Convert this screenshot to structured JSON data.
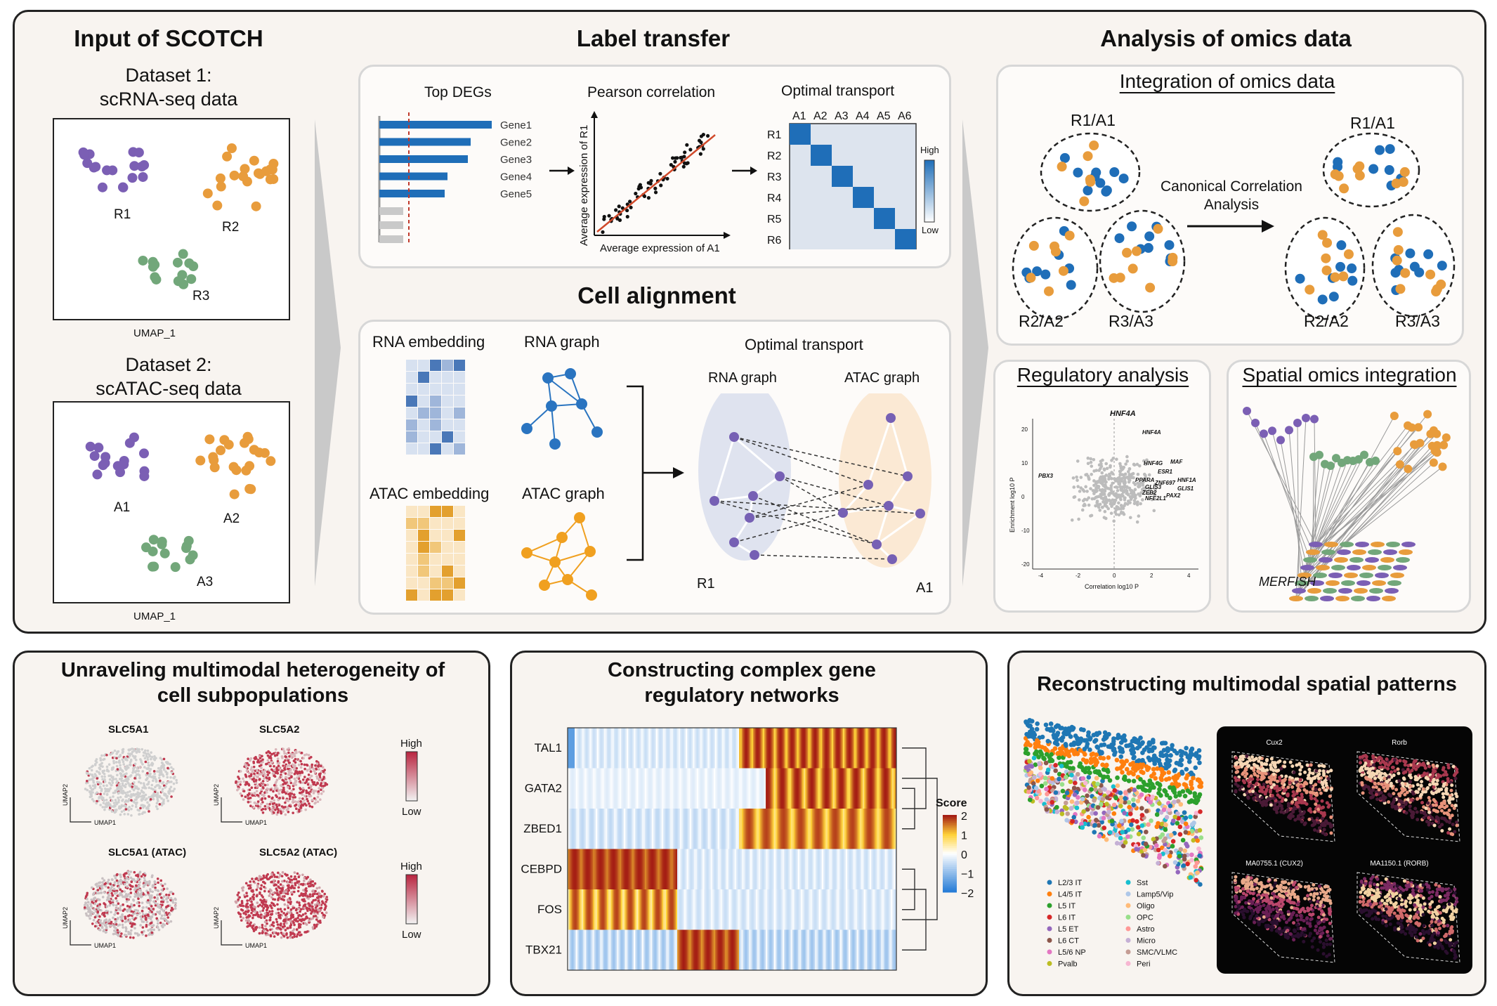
{
  "top": {
    "input": {
      "title": "Input of SCOTCH",
      "dataset1_title": "Dataset 1:",
      "dataset1_sub": "scRNA-seq data",
      "dataset2_title": "Dataset 2:",
      "dataset2_sub": "scATAC-seq data",
      "xlabel": "UMAP_1",
      "ylabel": "UMAP_2",
      "rna_clusters": [
        "R1",
        "R2",
        "R3"
      ],
      "atac_clusters": [
        "A1",
        "A2",
        "A3"
      ]
    },
    "label_transfer": {
      "title": "Label transfer",
      "top_degs_title": "Top DEGs",
      "genes": [
        "Gene1",
        "Gene2",
        "Gene3",
        "Gene4",
        "Gene5"
      ],
      "pearson_title": "Pearson correlation",
      "pearson_xlabel": "Average expression of A1",
      "pearson_ylabel": "Average expression of R1",
      "ot_title": "Optimal transport",
      "ot_cols": [
        "A1",
        "A2",
        "A3",
        "A4",
        "A5",
        "A6"
      ],
      "ot_rows": [
        "R1",
        "R2",
        "R3",
        "R4",
        "R5",
        "R6"
      ],
      "legend_high": "High",
      "legend_low": "Low"
    },
    "cell_alignment": {
      "title": "Cell alignment",
      "rna_embedding": "RNA embedding",
      "rna_graph": "RNA graph",
      "atac_embedding": "ATAC embedding",
      "atac_graph": "ATAC graph",
      "ot_title": "Optimal transport",
      "ot_rna_graph": "RNA graph",
      "ot_atac_graph": "ATAC graph",
      "r1": "R1",
      "a1": "A1"
    },
    "analysis": {
      "title": "Analysis of omics data",
      "integration_title": "Integration of omics data",
      "cca_line1": "Canonical Correlation",
      "cca_line2": "Analysis",
      "groups": [
        "R1/A1",
        "R2/A2",
        "R3/A3"
      ],
      "regulatory_title": "Regulatory analysis",
      "volcano_title": "HNF4A",
      "volcano_xlabel": "Correlation log10 P",
      "volcano_ylabel": "Enrichment log10 P",
      "volcano_yticks": [
        "20",
        "10",
        "0",
        "-10",
        "-20"
      ],
      "volcano_xticks": [
        "-4",
        "-2",
        "0",
        "2",
        "4"
      ],
      "volcano_genes": [
        "HNF4A",
        "MAF",
        "HNF4G",
        "ESR1",
        "PPARA",
        "HNF1A",
        "GLIS1",
        "GLIS3",
        "ZNF697",
        "ZEB2",
        "NFE2L1",
        "PAX2",
        "PBX3"
      ],
      "spatial_title": "Spatial omics integration",
      "merfish": "MERFISH"
    }
  },
  "bottom": {
    "heterogeneity": {
      "title_line1": "Unraveling multimodal heterogeneity of",
      "title_line2": "cell subpopulations",
      "plots": [
        "SLC5A1",
        "SLC5A2",
        "SLC5A1 (ATAC)",
        "SLC5A2 (ATAC)"
      ],
      "xlabel": "UMAP1",
      "ylabel": "UMAP2",
      "legend_high": "High",
      "legend_low": "Low"
    },
    "grn": {
      "title_line1": "Constructing complex gene",
      "title_line2": "regulatory networks",
      "rows": [
        "TAL1",
        "GATA2",
        "ZBED1",
        "CEBPD",
        "FOS",
        "TBX21"
      ],
      "score_title": "Score",
      "score_ticks": [
        "2",
        "1",
        "0",
        "−1",
        "−2"
      ]
    },
    "spatial": {
      "title": "Reconstructing multimodal spatial patterns",
      "legend_left": [
        {
          "label": "L2/3 IT",
          "color": "#1f77b4"
        },
        {
          "label": "L4/5 IT",
          "color": "#ff7f0e"
        },
        {
          "label": "L5 IT",
          "color": "#2ca02c"
        },
        {
          "label": "L6 IT",
          "color": "#d62728"
        },
        {
          "label": "L5 ET",
          "color": "#9467bd"
        },
        {
          "label": "L6 CT",
          "color": "#8c564b"
        },
        {
          "label": "L5/6 NP",
          "color": "#e377c2"
        },
        {
          "label": "Pvalb",
          "color": "#bcbd22"
        }
      ],
      "legend_right": [
        {
          "label": "Sst",
          "color": "#17becf"
        },
        {
          "label": "Lamp5/Vip",
          "color": "#aec7e8"
        },
        {
          "label": "Oligo",
          "color": "#ffbb78"
        },
        {
          "label": "OPC",
          "color": "#98df8a"
        },
        {
          "label": "Astro",
          "color": "#ff9896"
        },
        {
          "label": "Micro",
          "color": "#c5b0d5"
        },
        {
          "label": "SMC/VLMC",
          "color": "#c49c94"
        },
        {
          "label": "Peri",
          "color": "#f7b6d2"
        }
      ],
      "maps": [
        "Cux2",
        "Rorb",
        "MA0755.1 (CUX2)",
        "MA1150.1 (RORB)"
      ]
    }
  },
  "colors": {
    "purple": "#7b5fb4",
    "orange": "#e89c3c",
    "green": "#72a77a",
    "blue": "#1f6eb8",
    "graph_orange": "#f0a020"
  }
}
